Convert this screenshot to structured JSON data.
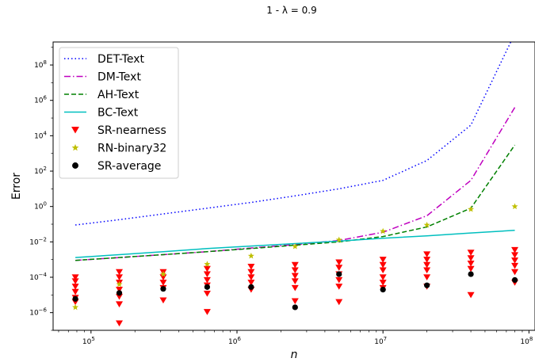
{
  "chart_data": {
    "type": "scatter",
    "title": "1 - λ = 0.9",
    "xlabel": "n",
    "ylabel": "Error",
    "xscale": "log",
    "yscale": "log",
    "xlim": [
      55000,
      110000000
    ],
    "ylim": [
      1e-07,
      2000000000.0
    ],
    "x_ticks": [
      {
        "value": 100000,
        "base": "10",
        "exp": "5"
      },
      {
        "value": 1000000,
        "base": "10",
        "exp": "6"
      },
      {
        "value": 10000000,
        "base": "10",
        "exp": "7"
      },
      {
        "value": 100000000,
        "base": "10",
        "exp": "8"
      }
    ],
    "y_ticks": [
      {
        "value": 1e-06,
        "base": "10",
        "exp": "−6"
      },
      {
        "value": 0.0001,
        "base": "10",
        "exp": "−4"
      },
      {
        "value": 0.01,
        "base": "10",
        "exp": "−2"
      },
      {
        "value": 1,
        "base": "10",
        "exp": "0"
      },
      {
        "value": 100,
        "base": "10",
        "exp": "2"
      },
      {
        "value": 10000,
        "base": "10",
        "exp": "4"
      },
      {
        "value": 1000000,
        "base": "10",
        "exp": "6"
      },
      {
        "value": 100000000,
        "base": "10",
        "exp": "8"
      }
    ],
    "x": [
      78125,
      156250,
      312500,
      625000,
      1250000,
      2500000,
      5000000,
      10000000,
      20000000,
      40000000,
      80000000
    ],
    "legend_position": "upper-left",
    "series": [
      {
        "name": "DET-Text",
        "kind": "line",
        "style": "dotted",
        "color": "#0000ff",
        "values": [
          0.09,
          0.18,
          0.38,
          0.8,
          1.7,
          4.0,
          10,
          30,
          400,
          40000,
          6000000000
        ]
      },
      {
        "name": "DM-Text",
        "kind": "line",
        "style": "dashdot",
        "color": "#bf00bf",
        "values": [
          0.0009,
          0.0013,
          0.0019,
          0.0028,
          0.0045,
          0.007,
          0.012,
          0.035,
          0.3,
          30,
          400000
        ]
      },
      {
        "name": "AH-Text",
        "kind": "line",
        "style": "dashed",
        "color": "#008000",
        "values": [
          0.0009,
          0.0013,
          0.0019,
          0.0028,
          0.0042,
          0.0065,
          0.01,
          0.02,
          0.07,
          0.8,
          3000
        ]
      },
      {
        "name": "BC-Text",
        "kind": "line",
        "style": "solid",
        "color": "#00bfbf",
        "values": [
          0.0013,
          0.0019,
          0.0028,
          0.0042,
          0.0058,
          0.008,
          0.011,
          0.016,
          0.022,
          0.032,
          0.045
        ]
      },
      {
        "name": "SR-nearness",
        "kind": "marker",
        "marker": "triangle-down",
        "color": "#ff0000",
        "points": [
          [
            78125,
            0.0001
          ],
          [
            78125,
            6e-05
          ],
          [
            78125,
            3e-05
          ],
          [
            78125,
            1.5e-05
          ],
          [
            78125,
            7e-06
          ],
          [
            78125,
            4e-06
          ],
          [
            156250,
            0.0002
          ],
          [
            156250,
            0.0001
          ],
          [
            156250,
            5e-05
          ],
          [
            156250,
            2e-05
          ],
          [
            156250,
            8e-06
          ],
          [
            156250,
            3e-06
          ],
          [
            156250,
            2.5e-07
          ],
          [
            312500,
            0.0002
          ],
          [
            312500,
            0.0001
          ],
          [
            312500,
            5e-05
          ],
          [
            312500,
            2.5e-05
          ],
          [
            312500,
            5e-06
          ],
          [
            625000,
            0.0003
          ],
          [
            625000,
            0.00015
          ],
          [
            625000,
            7e-05
          ],
          [
            625000,
            3.5e-05
          ],
          [
            625000,
            1.2e-05
          ],
          [
            625000,
            1.1e-06
          ],
          [
            1250000,
            0.0004
          ],
          [
            1250000,
            0.0002
          ],
          [
            1250000,
            0.0001
          ],
          [
            1250000,
            5e-05
          ],
          [
            1250000,
            2e-05
          ],
          [
            2500000,
            0.0005
          ],
          [
            2500000,
            0.00025
          ],
          [
            2500000,
            0.00012
          ],
          [
            2500000,
            6e-05
          ],
          [
            2500000,
            2.5e-05
          ],
          [
            2500000,
            4.5e-06
          ],
          [
            5000000,
            0.0007
          ],
          [
            5000000,
            0.00035
          ],
          [
            5000000,
            0.00015
          ],
          [
            5000000,
            7e-05
          ],
          [
            5000000,
            3e-05
          ],
          [
            5000000,
            4e-06
          ],
          [
            10000000,
            0.001
          ],
          [
            10000000,
            0.0005
          ],
          [
            10000000,
            0.00025
          ],
          [
            10000000,
            0.0001
          ],
          [
            10000000,
            5e-05
          ],
          [
            10000000,
            2.5e-05
          ],
          [
            20000000,
            0.002
          ],
          [
            20000000,
            0.001
          ],
          [
            20000000,
            0.0005
          ],
          [
            20000000,
            0.00025
          ],
          [
            20000000,
            0.0001
          ],
          [
            20000000,
            3e-05
          ],
          [
            40000000,
            0.0025
          ],
          [
            40000000,
            0.0012
          ],
          [
            40000000,
            0.0006
          ],
          [
            40000000,
            0.0003
          ],
          [
            40000000,
            1e-05
          ],
          [
            80000000,
            0.0035
          ],
          [
            80000000,
            0.0018
          ],
          [
            80000000,
            0.0009
          ],
          [
            80000000,
            0.00045
          ],
          [
            80000000,
            0.0002
          ],
          [
            80000000,
            5e-05
          ]
        ]
      },
      {
        "name": "RN-binary32",
        "kind": "marker",
        "marker": "star",
        "color": "#bfbf00",
        "points": [
          [
            78125,
            2e-06
          ],
          [
            156250,
            4e-05
          ],
          [
            312500,
            0.00015
          ],
          [
            625000,
            0.00055
          ],
          [
            1250000,
            0.0016
          ],
          [
            2500000,
            0.0055
          ],
          [
            5000000,
            0.013
          ],
          [
            10000000,
            0.04
          ],
          [
            20000000,
            0.09
          ],
          [
            40000000,
            0.7
          ],
          [
            80000000,
            1.0
          ]
        ]
      },
      {
        "name": "SR-average",
        "kind": "marker",
        "marker": "circle",
        "color": "#000000",
        "points": [
          [
            78125,
            6e-06
          ],
          [
            156250,
            1.3e-05
          ],
          [
            312500,
            2.2e-05
          ],
          [
            625000,
            2.8e-05
          ],
          [
            1250000,
            2.8e-05
          ],
          [
            2500000,
            2e-06
          ],
          [
            5000000,
            0.00015
          ],
          [
            10000000,
            2e-05
          ],
          [
            20000000,
            3.5e-05
          ],
          [
            40000000,
            0.00015
          ],
          [
            80000000,
            7e-05
          ]
        ]
      }
    ]
  }
}
